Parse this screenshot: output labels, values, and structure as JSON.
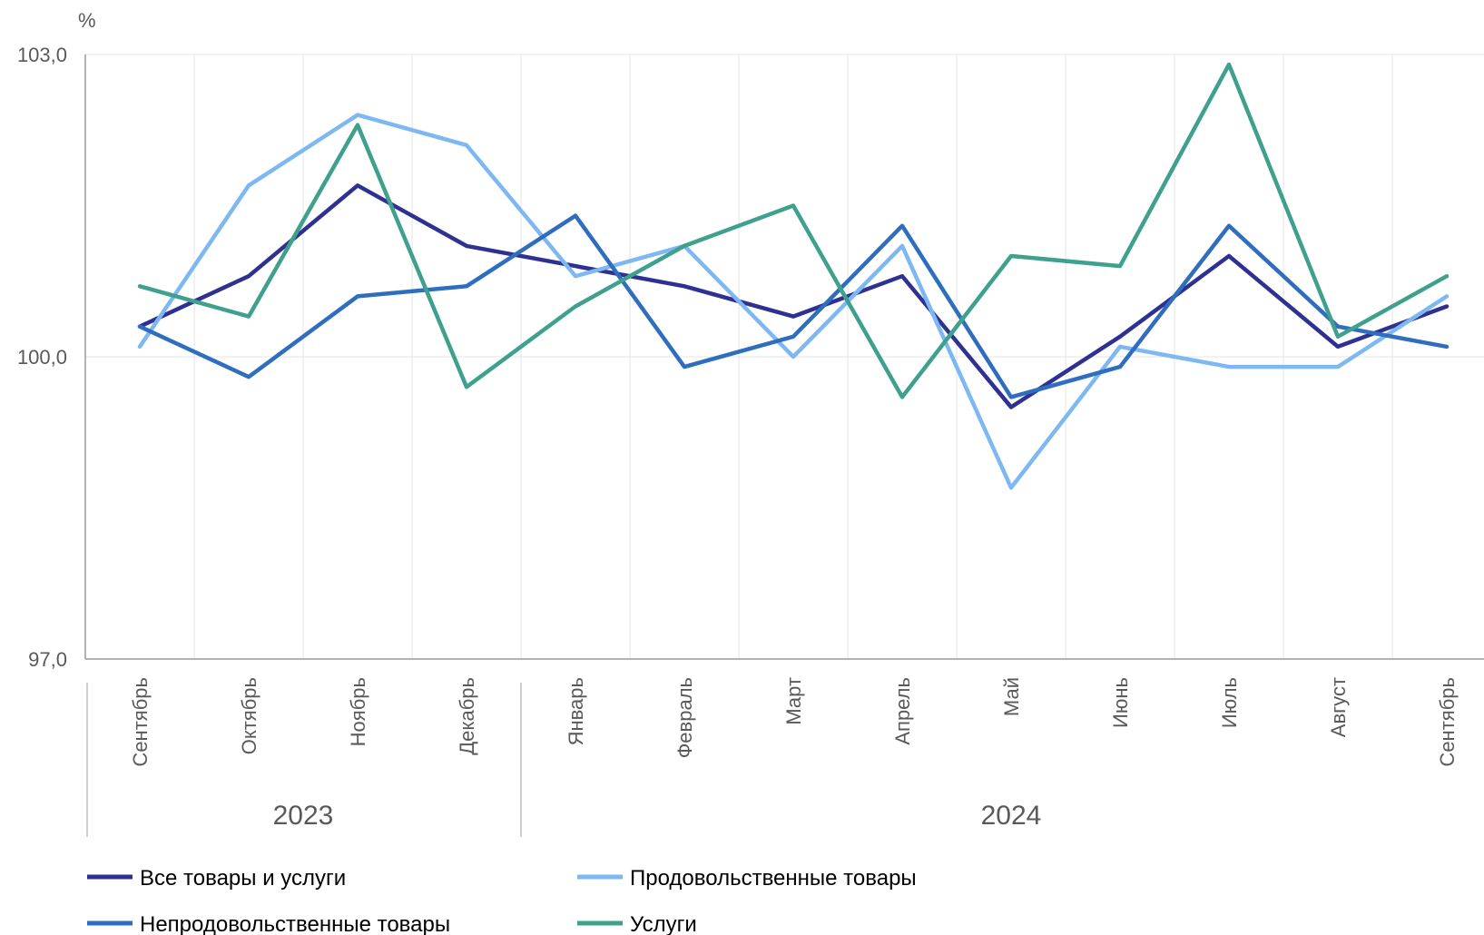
{
  "chart_data": {
    "type": "line",
    "unit_label": "%",
    "ylim": [
      97.0,
      103.0
    ],
    "yticks": [
      97.0,
      100.0,
      103.0
    ],
    "ytick_labels": [
      "97,0",
      "100,0",
      "103,0"
    ],
    "categories": [
      "Сентябрь",
      "Октябрь",
      "Ноябрь",
      "Декабрь",
      "Январь",
      "Февраль",
      "Март",
      "Апрель",
      "Май",
      "Июнь",
      "Июль",
      "Август",
      "Сентябрь"
    ],
    "year_groups": [
      {
        "label": "2023",
        "start": 0,
        "end": 3
      },
      {
        "label": "2024",
        "start": 4,
        "end": 12
      }
    ],
    "grid": true,
    "legend_position": "bottom",
    "series": [
      {
        "name": "Все товары и услуги",
        "color": "#2E3192",
        "values": [
          100.3,
          100.8,
          101.7,
          101.1,
          100.9,
          100.7,
          100.4,
          100.8,
          99.5,
          100.2,
          101.0,
          100.1,
          100.5
        ]
      },
      {
        "name": "Продовольственные товары",
        "color": "#7EB8F2",
        "values": [
          100.1,
          101.7,
          102.4,
          102.1,
          100.8,
          101.1,
          100.0,
          101.1,
          98.7,
          100.1,
          99.9,
          99.9,
          100.6
        ]
      },
      {
        "name": "Непродовольственные товары",
        "color": "#2F6EBF",
        "values": [
          100.3,
          99.8,
          100.6,
          100.7,
          101.4,
          99.9,
          100.2,
          101.3,
          99.6,
          99.9,
          101.3,
          100.3,
          100.1
        ]
      },
      {
        "name": "Услуги",
        "color": "#3FA08E",
        "values": [
          100.7,
          100.4,
          102.3,
          99.7,
          100.5,
          101.1,
          101.5,
          99.6,
          101.0,
          100.9,
          102.9,
          100.2,
          100.8
        ]
      }
    ]
  }
}
